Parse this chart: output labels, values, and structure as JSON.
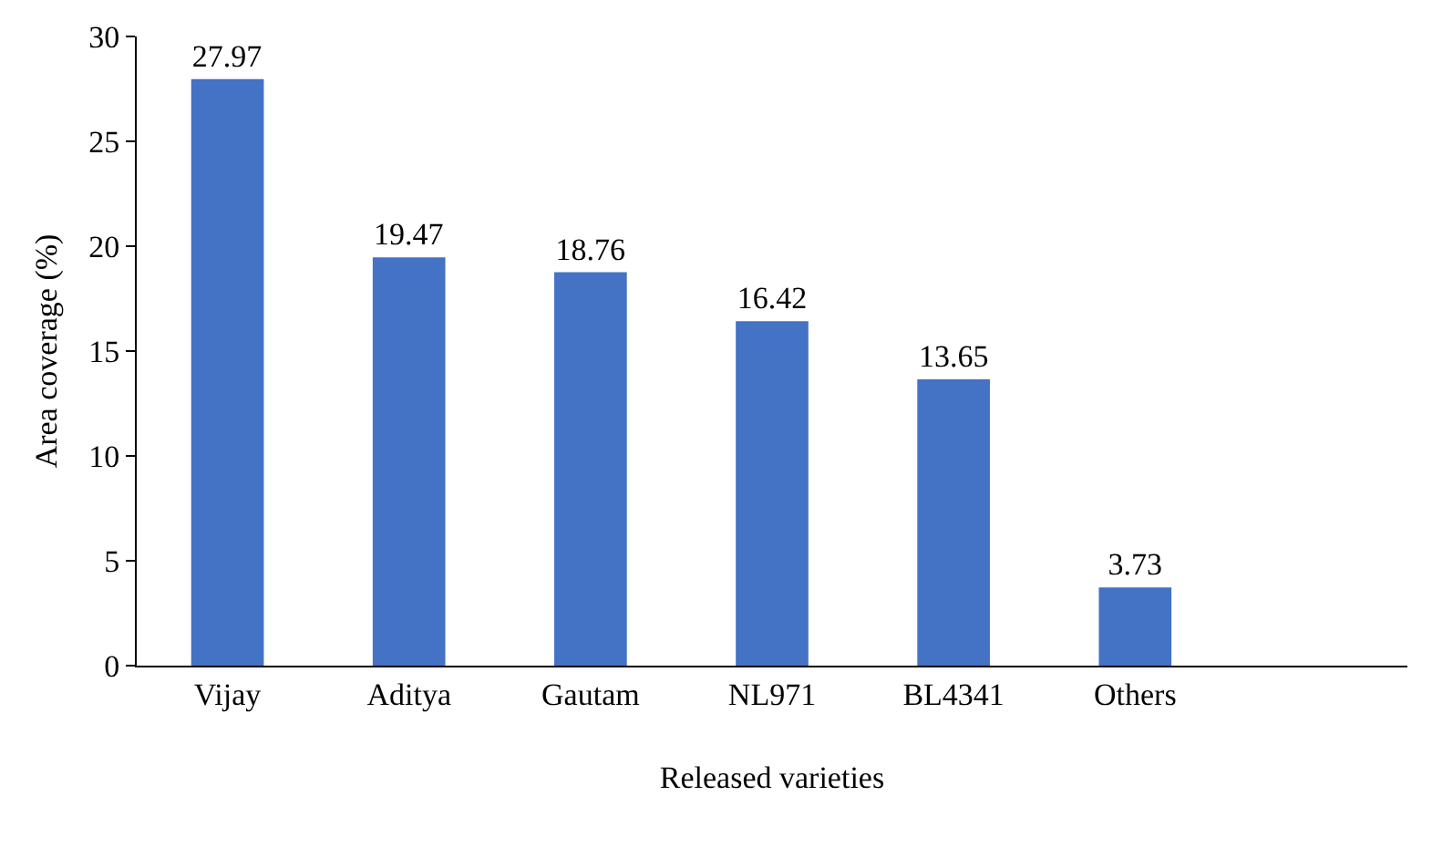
{
  "chart_data": {
    "type": "bar",
    "xlabel": "Released varieties",
    "ylabel": "Area coverage (%)",
    "categories": [
      "Vijay",
      "Aditya",
      "Gautam",
      "NL971",
      "BL4341",
      "Others",
      null
    ],
    "values": [
      27.97,
      19.47,
      18.76,
      16.42,
      13.65,
      3.73,
      null
    ],
    "color": "#4472c4",
    "data_labels": true,
    "grid": false,
    "legend": false,
    "ylim": [
      0,
      30
    ],
    "yticks": [
      0,
      5,
      10,
      15,
      20,
      25,
      30
    ]
  }
}
